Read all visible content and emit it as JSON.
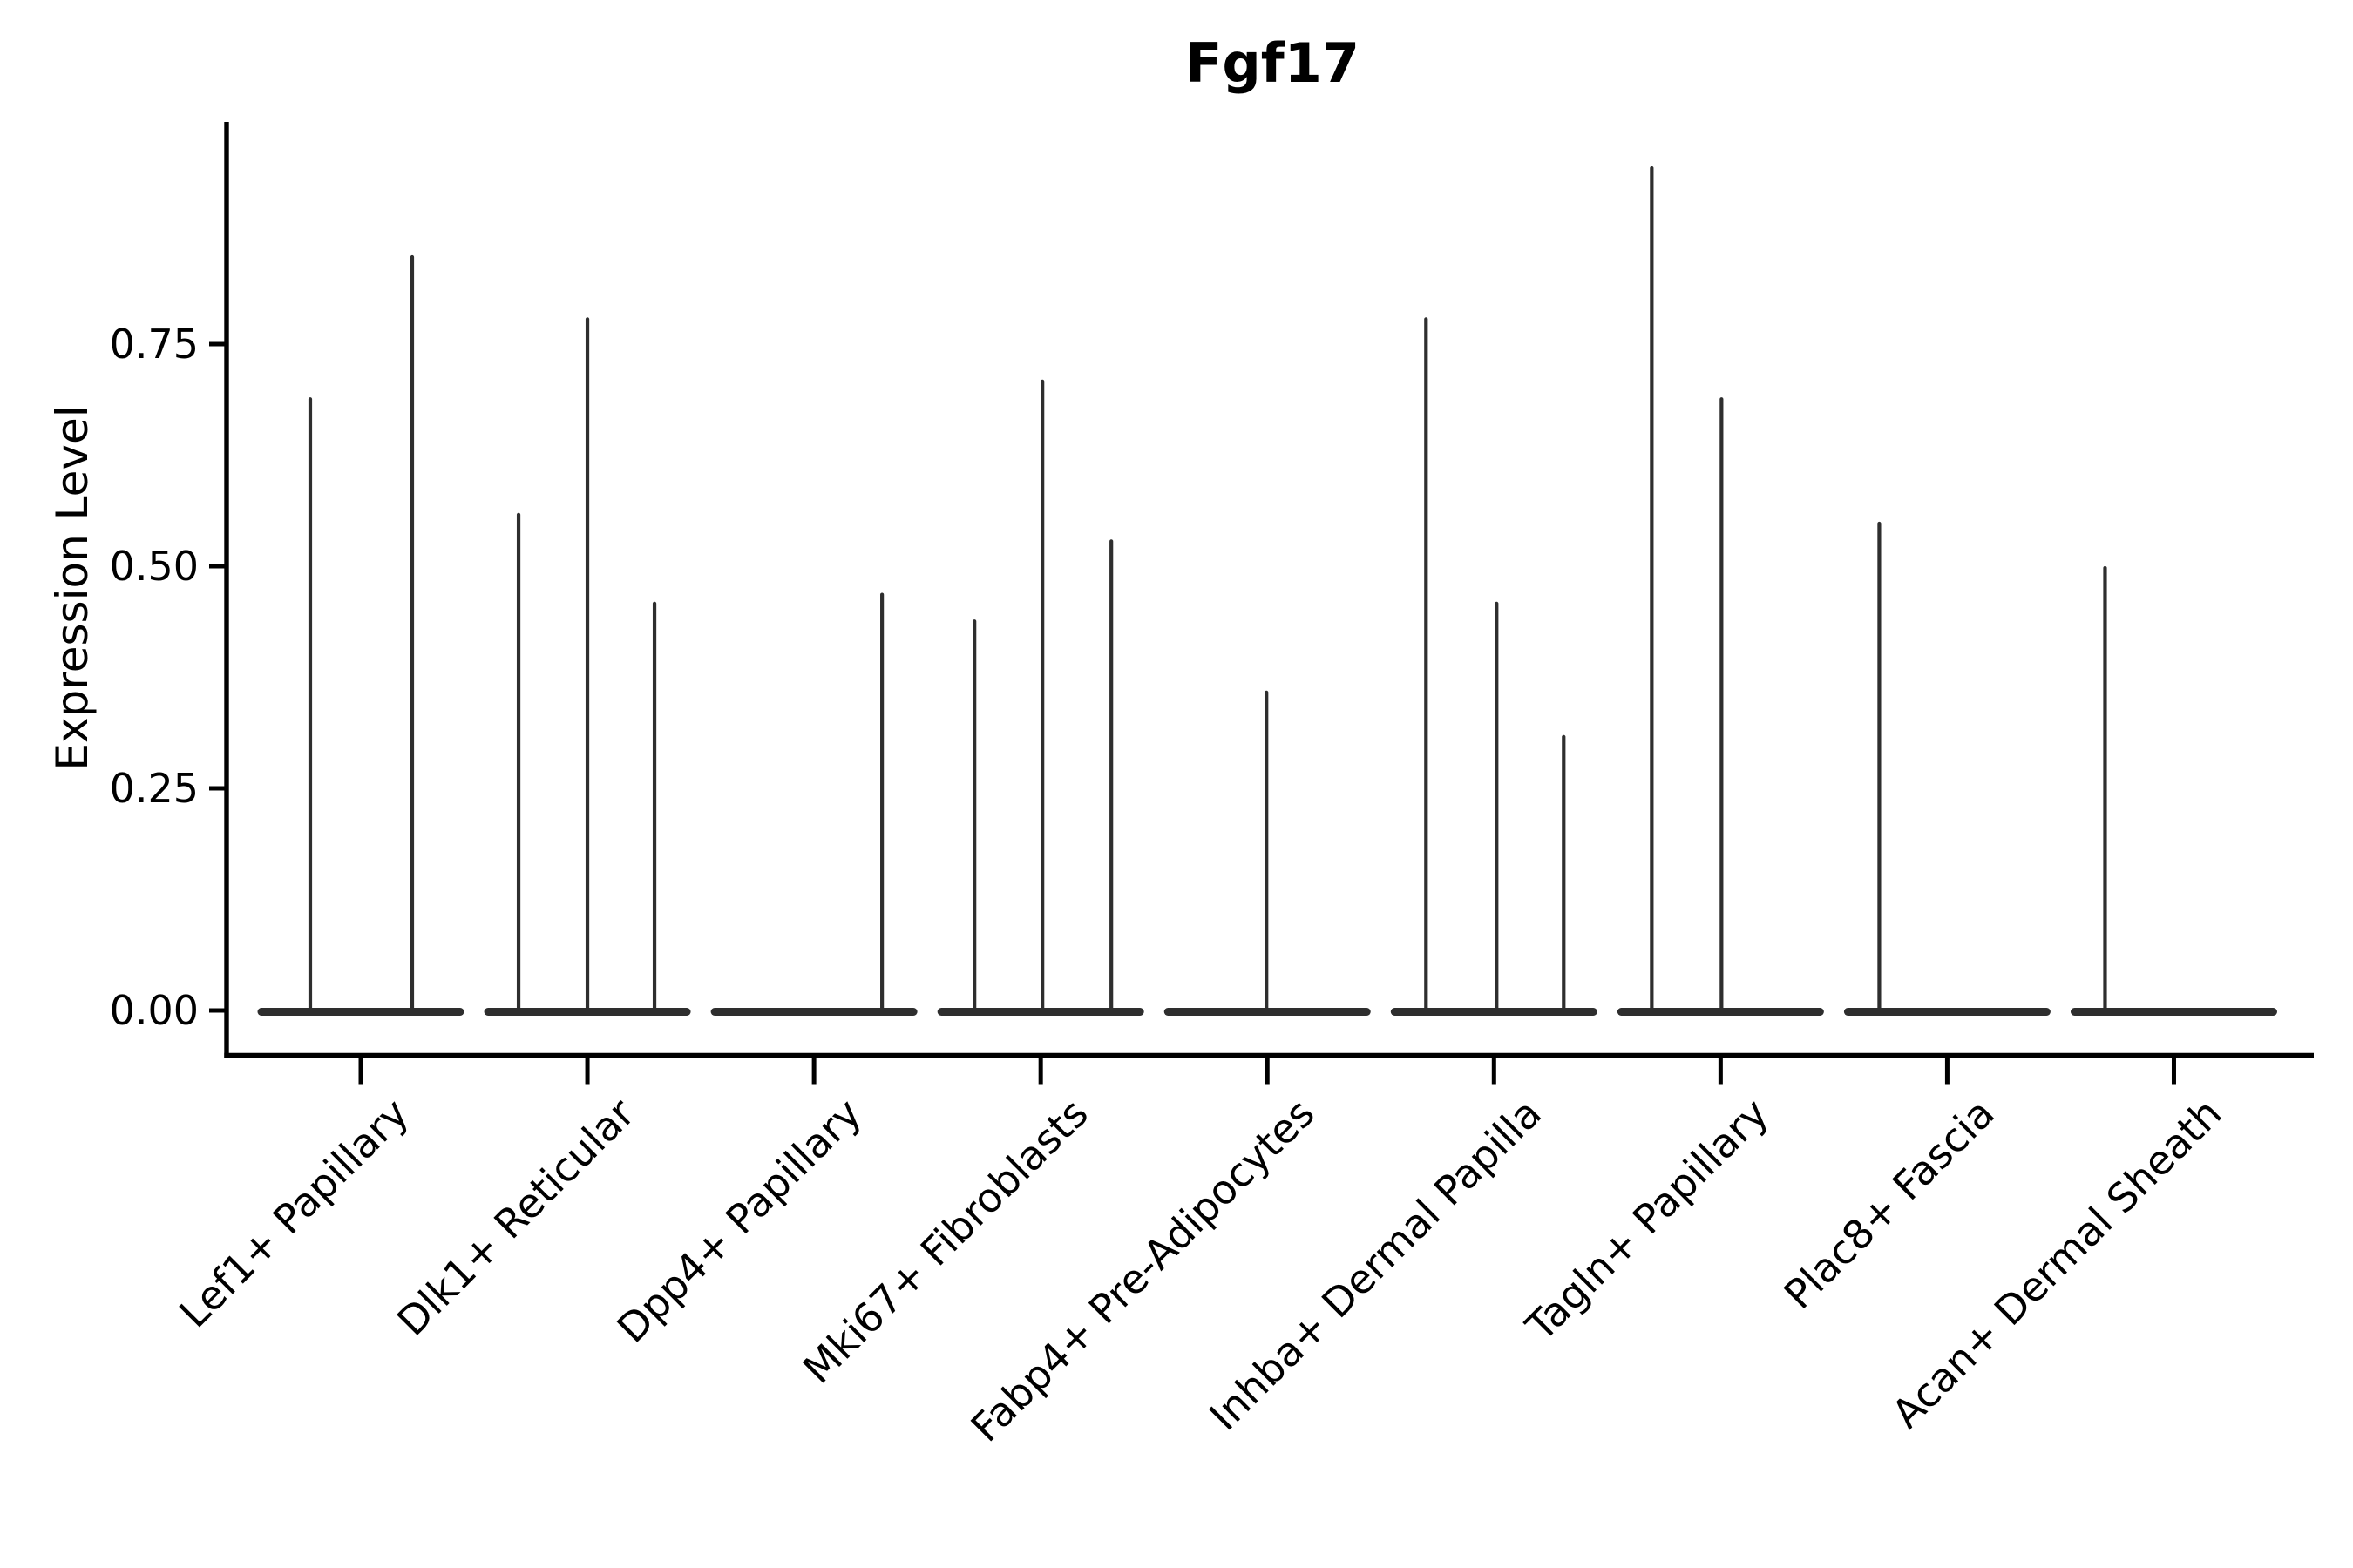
{
  "figure": {
    "background": "#ffffff",
    "text_color": "#000000",
    "axis_color": "#000000"
  },
  "chart_data": {
    "type": "violin",
    "title": "Fgf17",
    "xlabel": "",
    "ylabel": "Expression Level",
    "ylim": [
      0,
      1.05
    ],
    "yticks": [
      0.0,
      0.25,
      0.5,
      0.75
    ],
    "ytick_labels": [
      "0.00",
      "0.25",
      "0.50",
      "0.75"
    ],
    "grid": false,
    "legend": "none",
    "violin_color": "#2e2e2e",
    "baseline_value": 0.0,
    "categories": [
      "Lef1+ Papillary",
      "Dlk1+ Reticular",
      "Dpp4+ Papillary",
      "Mki67+ Fibroblasts",
      "Fabp4+ Pre-Adipocytes",
      "Inhba+ Dermal Papilla",
      "Tagln+ Papillary",
      "Plac8+ Fascia",
      "Acan+ Dermal Sheath"
    ],
    "violins": [
      {
        "category_index": 0,
        "spikes": [
          {
            "dx": -58,
            "max": 0.69
          },
          {
            "dx": 59,
            "max": 0.85
          }
        ]
      },
      {
        "category_index": 1,
        "spikes": [
          {
            "dx": -79,
            "max": 0.56
          },
          {
            "dx": 0,
            "max": 0.78
          },
          {
            "dx": 77,
            "max": 0.46
          }
        ]
      },
      {
        "category_index": 2,
        "spikes": [
          {
            "dx": 78,
            "max": 0.47
          }
        ]
      },
      {
        "category_index": 3,
        "spikes": [
          {
            "dx": -76,
            "max": 0.44
          },
          {
            "dx": 2,
            "max": 0.71
          },
          {
            "dx": 81,
            "max": 0.53
          }
        ]
      },
      {
        "category_index": 4,
        "spikes": [
          {
            "dx": -1,
            "max": 0.36
          }
        ]
      },
      {
        "category_index": 5,
        "spikes": [
          {
            "dx": -78,
            "max": 0.78
          },
          {
            "dx": 3,
            "max": 0.46
          },
          {
            "dx": 80,
            "max": 0.31
          }
        ]
      },
      {
        "category_index": 6,
        "spikes": [
          {
            "dx": -79,
            "max": 0.95
          },
          {
            "dx": 1,
            "max": 0.69
          }
        ]
      },
      {
        "category_index": 7,
        "spikes": [
          {
            "dx": -78,
            "max": 0.55
          }
        ]
      },
      {
        "category_index": 8,
        "spikes": [
          {
            "dx": -79,
            "max": 0.5
          }
        ]
      }
    ]
  }
}
